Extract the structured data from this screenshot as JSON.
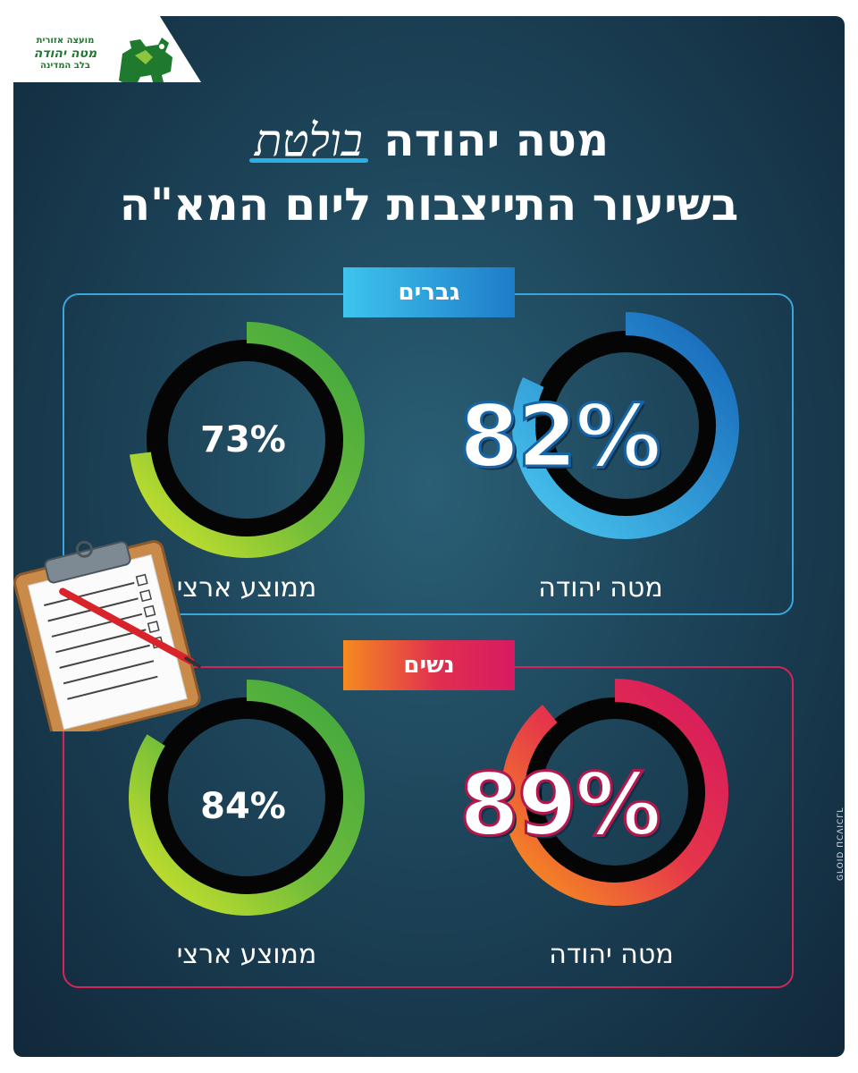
{
  "logo": {
    "line1": "מועצה אזורית",
    "line2": "מטה יהודה",
    "line3": "בלב המדינה"
  },
  "title": {
    "line1_prefix": "מטה יהודה",
    "line1_accent": "בולטת",
    "line2": "בשיעור התייצבות ליום המא\"ה"
  },
  "credit": "GLOID ΠCΛICΓL",
  "colors": {
    "men_accent": "#1e7cc8",
    "women_accent": "#e02f4f",
    "national_green": "#4aaa3a"
  },
  "chart_data": [
    {
      "type": "pie",
      "group": "גברים",
      "categories": [
        "מטה יהודה",
        "ממוצע ארצי"
      ],
      "values": [
        82,
        73
      ],
      "value_labels": [
        "82%",
        "73%"
      ]
    },
    {
      "type": "pie",
      "group": "נשים",
      "categories": [
        "מטה יהודה",
        "ממוצע ארצי"
      ],
      "values": [
        89,
        84
      ],
      "value_labels": [
        "89%",
        "84%"
      ]
    }
  ]
}
